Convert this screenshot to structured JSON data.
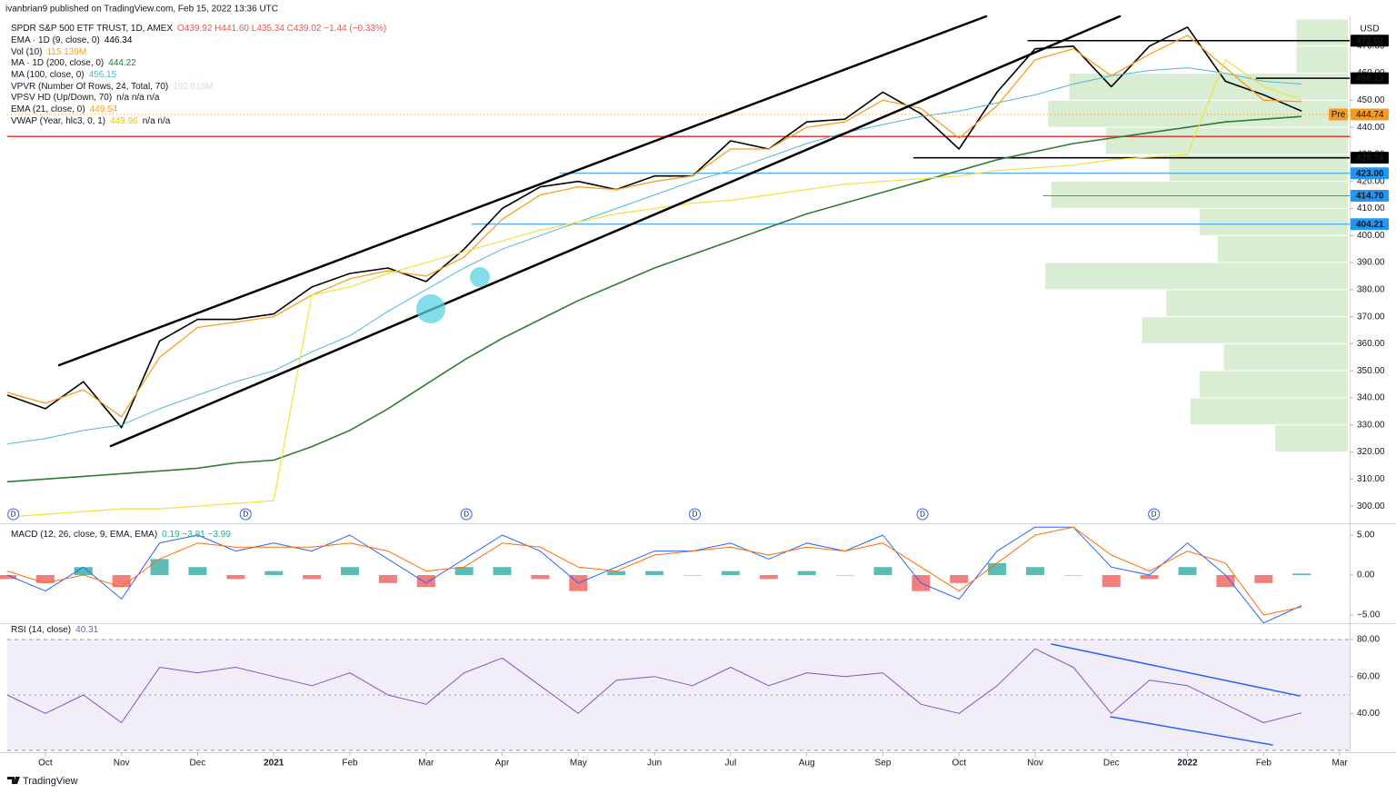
{
  "header": {
    "author_line": "ivanbrian9 published on TradingView.com, Feb 15, 2022 13:36 UTC",
    "currency": "USD",
    "footer": "TradingView"
  },
  "indicators": [
    {
      "name": "Vol (10)",
      "value": "115.139M"
    },
    {
      "name": "VPVR (Number Of Rows, 24, Total, 70)",
      "value": "192.618M"
    },
    {
      "name": "VPSV HD (Up/Down, 70)",
      "value": "n/a n/a n/a"
    }
  ],
  "chart_data": [
    {
      "type": "line",
      "title": "SPDR S&P 500 ETF TRUST, 1D, AMEX",
      "ohlc": "O439.92 H441.60 L435.34 C439.02 −1.44 (−0.33%)",
      "x": [
        -0.5,
        0,
        0.5,
        1,
        1.5,
        2,
        2.5,
        3,
        3.5,
        4,
        4.5,
        5,
        5.5,
        6,
        6.5,
        7,
        7.5,
        8,
        8.5,
        9,
        9.5,
        10,
        10.5,
        11,
        11.5,
        12,
        12.5,
        13,
        13.5,
        14,
        14.5,
        15,
        15.5,
        16,
        16.5
      ],
      "xlim": [
        -0.5,
        17.13
      ],
      "xticks": [
        {
          "value": 0,
          "label": "Oct"
        },
        {
          "value": 1,
          "label": "Nov"
        },
        {
          "value": 2,
          "label": "Dec"
        },
        {
          "value": 3,
          "label": "2021"
        },
        {
          "value": 4,
          "label": "Feb"
        },
        {
          "value": 5,
          "label": "Mar"
        },
        {
          "value": 6,
          "label": "Apr"
        },
        {
          "value": 7,
          "label": "May"
        },
        {
          "value": 8,
          "label": "Jun"
        },
        {
          "value": 9,
          "label": "Jul"
        },
        {
          "value": 10,
          "label": "Aug"
        },
        {
          "value": 11,
          "label": "Sep"
        },
        {
          "value": 12,
          "label": "Oct"
        },
        {
          "value": 13,
          "label": "Nov"
        },
        {
          "value": 14,
          "label": "Dec"
        },
        {
          "value": 15,
          "label": "2022"
        },
        {
          "value": 16,
          "label": "Feb"
        },
        {
          "value": 17,
          "label": "Mar"
        }
      ],
      "ylim": [
        294,
        481
      ],
      "yticks": [
        {
          "value": 300,
          "label": "300.00"
        },
        {
          "value": 310,
          "label": "310.00"
        },
        {
          "value": 320,
          "label": "320.00"
        },
        {
          "value": 330,
          "label": "330.00"
        },
        {
          "value": 340,
          "label": "340.00"
        },
        {
          "value": 350,
          "label": "350.00"
        },
        {
          "value": 360,
          "label": "360.00"
        },
        {
          "value": 370,
          "label": "370.00"
        },
        {
          "value": 380,
          "label": "380.00"
        },
        {
          "value": 390,
          "label": "390.00"
        },
        {
          "value": 400,
          "label": "400.00"
        },
        {
          "value": 410,
          "label": "410.00"
        },
        {
          "value": 420,
          "label": "420.00"
        },
        {
          "value": 430,
          "label": "430.00"
        },
        {
          "value": 440,
          "label": "440.00"
        },
        {
          "value": 450,
          "label": "450.00"
        },
        {
          "value": 460,
          "label": "460.00"
        },
        {
          "value": 470,
          "label": "470.00"
        }
      ],
      "grid": false,
      "series": [
        {
          "name": "EMA · 1D (9, close, 0)",
          "legend_value": "446.34",
          "color": "#000000",
          "width": 1.6,
          "values": [
            341,
            336,
            346,
            329,
            361,
            369,
            369,
            371,
            381,
            386,
            388,
            383,
            395,
            410,
            418,
            420,
            417,
            422,
            422,
            435,
            432,
            442,
            443,
            453,
            445,
            432,
            453,
            469,
            470,
            455,
            470,
            477,
            457,
            452,
            446
          ]
        },
        {
          "name": "MA · 1D (200, close, 0)",
          "legend_value": "444.22",
          "color": "#2e7d32",
          "width": 1.6,
          "values": [
            309,
            310,
            311,
            312,
            313,
            314,
            316,
            317,
            322,
            328,
            336,
            345,
            354,
            362,
            369,
            376,
            382,
            388,
            393,
            398,
            403,
            408,
            412,
            416,
            420,
            424,
            428,
            431,
            434,
            436,
            438,
            440,
            442,
            443,
            444
          ]
        },
        {
          "name": "MA (100, close, 0)",
          "legend_value": "456.15",
          "color": "#4fb8d6",
          "width": 1,
          "values": [
            323,
            325,
            328,
            330,
            336,
            341,
            346,
            350,
            357,
            363,
            372,
            380,
            388,
            395,
            400,
            405,
            410,
            415,
            420,
            424,
            429,
            434,
            438,
            441,
            444,
            446,
            449,
            452,
            456,
            459,
            461,
            462,
            460,
            457,
            456
          ]
        },
        {
          "name": "EMA (21, close, 0)",
          "legend_value": "449.54",
          "color": "#f5a020",
          "width": 1.3,
          "values": [
            342,
            338,
            343,
            333,
            355,
            366,
            368,
            370,
            378,
            384,
            387,
            385,
            392,
            406,
            415,
            418,
            417,
            420,
            422,
            432,
            432,
            440,
            442,
            450,
            447,
            436,
            448,
            465,
            469,
            459,
            467,
            474,
            462,
            450,
            449.5
          ]
        },
        {
          "name": "VWAP (Year, hlc3, 0, 1)",
          "legend_value": "449.96",
          "legend_extra": "n/a n/a",
          "color": "#f2e03c",
          "width": 1.2,
          "values": [
            296,
            297,
            298,
            299,
            299,
            300,
            301,
            302,
            378,
            381,
            386,
            390,
            394,
            398,
            402,
            405,
            408,
            410,
            412,
            413,
            415,
            417,
            419,
            420,
            421,
            422,
            424,
            425,
            426,
            428,
            429,
            430,
            465,
            455,
            450
          ]
        }
      ],
      "volume_profile": {
        "bins": [
          320,
          330,
          340,
          350,
          360,
          370,
          380,
          390,
          400,
          410,
          420,
          430,
          440,
          450,
          460,
          470,
          480
        ],
        "values": [
          24,
          52,
          49,
          41,
          68,
          60,
          100,
          43,
          49,
          98,
          59,
          80,
          99,
          92,
          17,
          17
        ],
        "color": "#cfe8c8"
      },
      "levels": [
        {
          "value": 472.02,
          "label": "472.02",
          "color": "#000000",
          "from": 12.9
        },
        {
          "value": 458.13,
          "label": "458.13",
          "color": "#000000",
          "from": 15.9
        },
        {
          "value": 428.74,
          "label": "428.74",
          "color": "#000000",
          "from": 11.4
        },
        {
          "value": 423.0,
          "label": "423.00",
          "color": "#2196f3",
          "from": 6.75
        },
        {
          "value": 414.7,
          "label": "414.70",
          "color": "#2196f3",
          "from": 13.1
        },
        {
          "value": 404.21,
          "label": "404.21",
          "color": "#2196f3",
          "from": 5.6
        },
        {
          "value": 436.6,
          "color": "#e53935",
          "from": -0.5
        }
      ],
      "last_price": {
        "value": 444.74,
        "label": "444.74",
        "tag": "Pre",
        "color": "#f59a23"
      },
      "dividends": {
        "x": [
          -0.42,
          2.63,
          5.53,
          8.53,
          11.52,
          14.56
        ],
        "label": "D",
        "color": "#2962ff"
      }
    },
    {
      "type": "macd",
      "title": "MACD (12, 26, close, 9, EMA, EMA)",
      "legend_value": "0.19 −3.81 −3.99",
      "x": [
        -0.5,
        0,
        0.5,
        1,
        1.5,
        2,
        2.5,
        3,
        3.5,
        4,
        4.5,
        5,
        5.5,
        6,
        6.5,
        7,
        7.5,
        8,
        8.5,
        9,
        9.5,
        10,
        10.5,
        11,
        11.5,
        12,
        12.5,
        13,
        13.5,
        14,
        14.5,
        15,
        15.5,
        16,
        16.5
      ],
      "ylim": [
        -5.68,
        6.25
      ],
      "yticks": [
        {
          "value": 5,
          "label": "5.00"
        },
        {
          "value": 0,
          "label": "0.00"
        },
        {
          "value": -5,
          "label": "−5.00"
        }
      ],
      "series": [
        {
          "color": "#2962ff",
          "width": 1,
          "values": [
            0,
            -2,
            1,
            -3,
            4,
            5,
            3,
            4,
            3,
            5,
            2,
            -1,
            2,
            5,
            3,
            -1,
            1,
            3,
            3,
            4,
            2,
            4,
            3,
            5,
            -1,
            -3,
            3,
            6,
            6,
            1,
            0,
            4,
            0,
            -6,
            -3.81
          ]
        },
        {
          "color": "#ff6d00",
          "width": 1,
          "values": [
            0.5,
            -1,
            0,
            -1.5,
            2,
            4,
            3.5,
            3.5,
            3.5,
            4,
            3,
            0.5,
            1,
            4,
            3.5,
            1,
            0.5,
            2.5,
            3,
            3.5,
            2.5,
            3.5,
            3,
            4,
            1,
            -2,
            1.5,
            5,
            6,
            2.5,
            0.5,
            3,
            1.5,
            -5,
            -3.99
          ]
        }
      ],
      "histogram": {
        "values": [
          -0.5,
          -1,
          1,
          -1.5,
          2,
          1,
          -0.5,
          0.5,
          -0.5,
          1,
          -1,
          -1.5,
          1,
          1,
          -0.5,
          -2,
          0.5,
          0.5,
          0,
          0.5,
          -0.5,
          0.5,
          0,
          1,
          -2,
          -1,
          1.5,
          1,
          0,
          -1.5,
          -0.5,
          1,
          -1.5,
          -1,
          0.19
        ],
        "up_color": "#26a69a",
        "down_color": "#ef5350"
      }
    },
    {
      "type": "line",
      "title": "RSI (14, close)",
      "legend_value": "40.31",
      "x": [
        -0.5,
        0,
        0.5,
        1,
        1.5,
        2,
        2.5,
        3,
        3.5,
        4,
        4.5,
        5,
        5.5,
        6,
        6.5,
        7,
        7.5,
        8,
        8.5,
        9,
        9.5,
        10,
        10.5,
        11,
        11.5,
        12,
        12.5,
        13,
        13.5,
        14,
        14.5,
        15,
        15.5,
        16,
        16.5
      ],
      "ylim": [
        20,
        80.5
      ],
      "yticks": [
        {
          "value": 80,
          "label": "80.00"
        },
        {
          "value": 60,
          "label": "60.00"
        },
        {
          "value": 40,
          "label": "40.00"
        }
      ],
      "band": [
        20,
        80
      ],
      "midline": 50,
      "band_color": "#7e57c2",
      "series": [
        {
          "color": "#7e57c2",
          "width": 1,
          "values": [
            50,
            40,
            50,
            35,
            65,
            62,
            65,
            60,
            55,
            62,
            50,
            45,
            62,
            70,
            55,
            40,
            58,
            60,
            55,
            65,
            55,
            62,
            60,
            62,
            45,
            40,
            55,
            75,
            65,
            40,
            58,
            55,
            45,
            35,
            40.31
          ]
        }
      ]
    }
  ]
}
